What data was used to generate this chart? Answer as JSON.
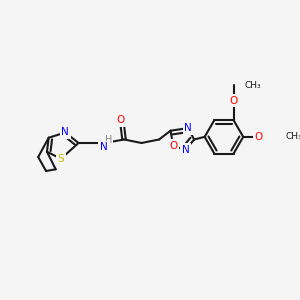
{
  "background_color": "#f5f5f5",
  "bond_color": "#1a1a1a",
  "bond_width": 1.5,
  "atom_colors": {
    "N": "#0000ff",
    "O": "#ff0000",
    "S": "#ccbb00",
    "C": "#1a1a1a",
    "H": "#888888"
  },
  "font_size_atom": 7.5,
  "font_size_small": 6.5
}
